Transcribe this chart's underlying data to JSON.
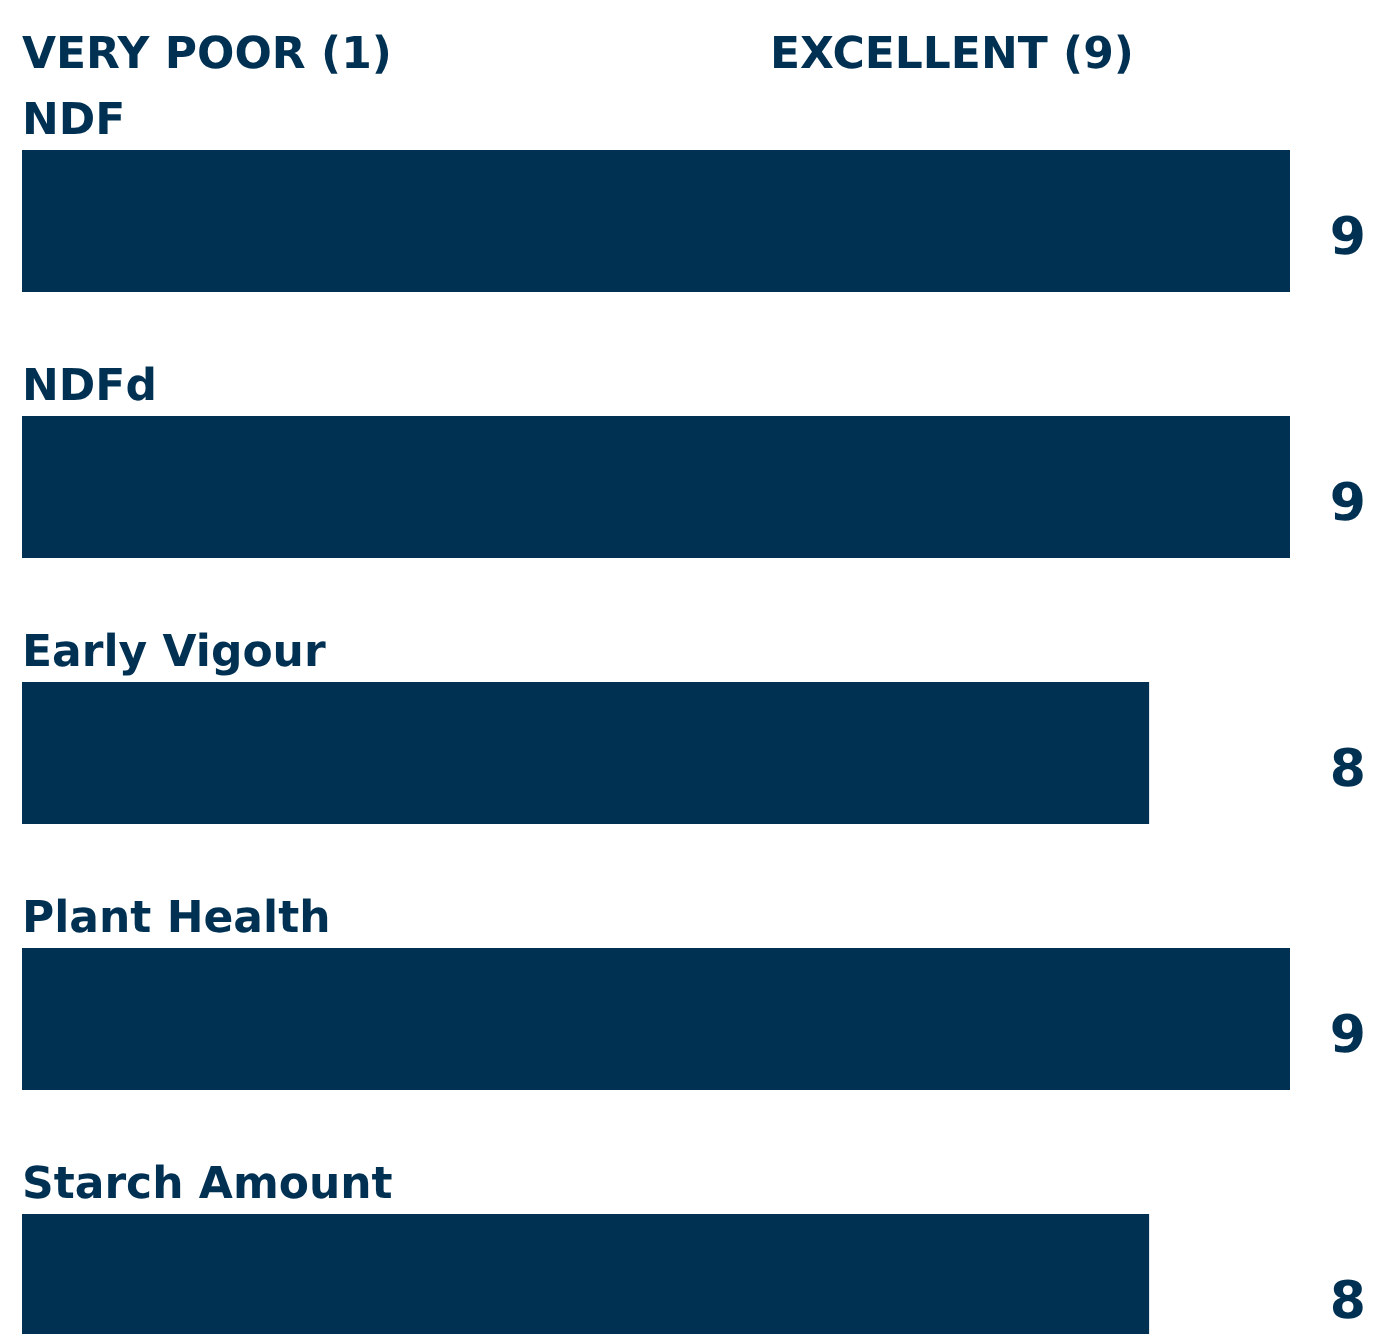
{
  "chart_data": {
    "type": "bar",
    "orientation": "horizontal",
    "categories": [
      "NDF",
      "NDFd",
      "Early Vigour",
      "Plant Health",
      "Starch Amount"
    ],
    "values": [
      9,
      9,
      8,
      9,
      8
    ],
    "color": "#003153",
    "data_labels": true,
    "annotations": [
      "VERY POOR (1)",
      "EXCELLENT (9)"
    ]
  }
}
